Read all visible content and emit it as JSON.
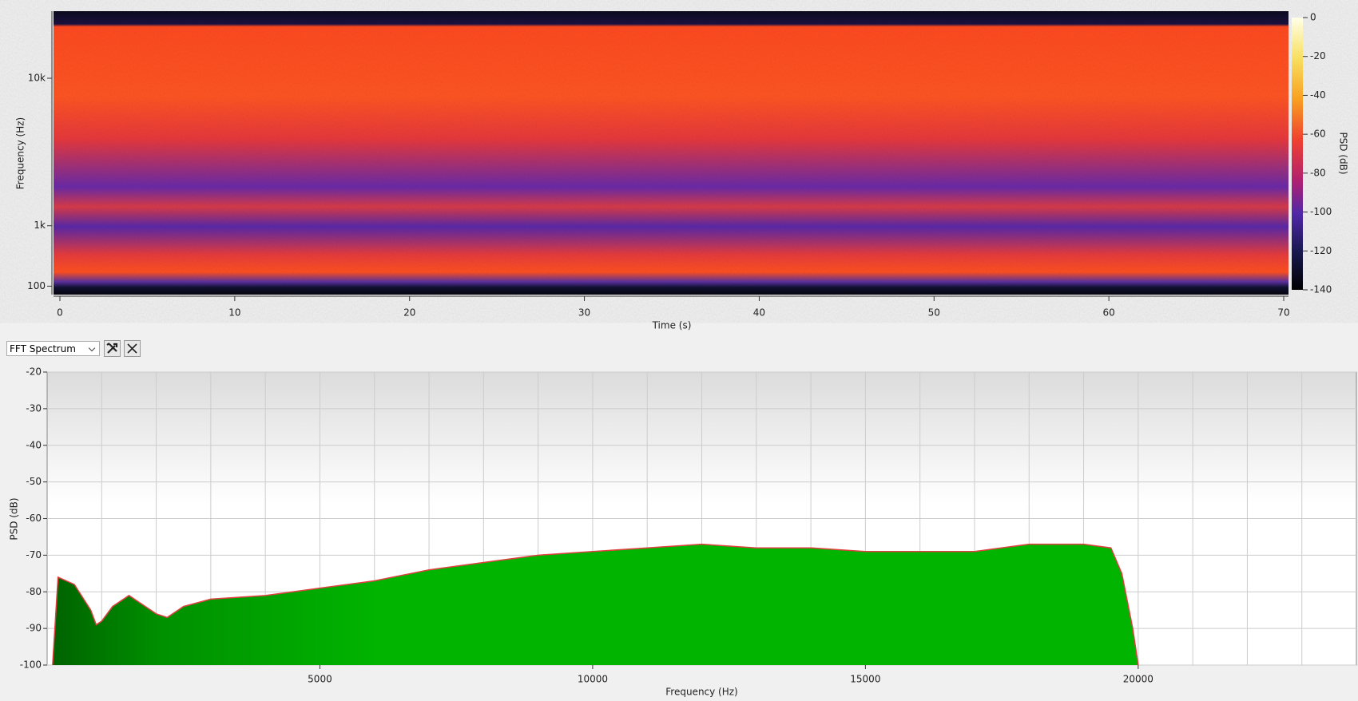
{
  "chart_data": [
    {
      "type": "spectrogram",
      "xlabel": "Time (s)",
      "ylabel": "Frequency (Hz)",
      "xlim": [
        0,
        70
      ],
      "xticks": [
        0,
        10,
        20,
        30,
        40,
        50,
        60,
        70
      ],
      "ylim": [
        20,
        24000
      ],
      "yscale": "mel",
      "yticks": [
        100,
        {
          "value": 1000,
          "label": "1k"
        },
        {
          "value": 10000,
          "label": "10k"
        }
      ],
      "colorbar": {
        "label": "PSD (dB)",
        "lim": [
          -140,
          0
        ],
        "ticks": [
          0,
          -20,
          -40,
          -60,
          -80,
          -100,
          -120,
          -140
        ]
      }
    },
    {
      "type": "area",
      "xlabel": "Frequency (Hz)",
      "ylabel": "PSD (dB)",
      "xlim": [
        0,
        24000
      ],
      "xticks": [
        5000,
        10000,
        15000,
        20000
      ],
      "xgrid": [
        1000,
        2000,
        3000,
        4000,
        5000,
        6000,
        7000,
        8000,
        9000,
        10000,
        11000,
        12000,
        13000,
        14000,
        15000,
        16000,
        17000,
        18000,
        19000,
        20000,
        21000,
        22000,
        23000
      ],
      "ylim": [
        -100,
        -20
      ],
      "yticks": [
        -100,
        -90,
        -80,
        -70,
        -60,
        -50,
        -40,
        -30,
        -20
      ],
      "grid": true,
      "color": "#00b400",
      "line_color": "#e04040",
      "x": [
        100,
        200,
        500,
        800,
        900,
        1000,
        1200,
        1500,
        2000,
        2200,
        2500,
        3000,
        4000,
        5000,
        6000,
        7000,
        8000,
        9000,
        10000,
        11000,
        12000,
        13000,
        14000,
        15000,
        16000,
        17000,
        18000,
        19000,
        19500,
        19700,
        19900,
        20000
      ],
      "values": [
        -100,
        -76,
        -78,
        -85,
        -89,
        -88,
        -84,
        -81,
        -86,
        -87,
        -84,
        -82,
        -81,
        -79,
        -77,
        -74,
        -72,
        -70,
        -69,
        -68,
        -67,
        -68,
        -68,
        -69,
        -69,
        -69,
        -67,
        -67,
        -68,
        -75,
        -90,
        -100
      ]
    }
  ],
  "toolbar": {
    "selector": "FFT Spectrum"
  }
}
